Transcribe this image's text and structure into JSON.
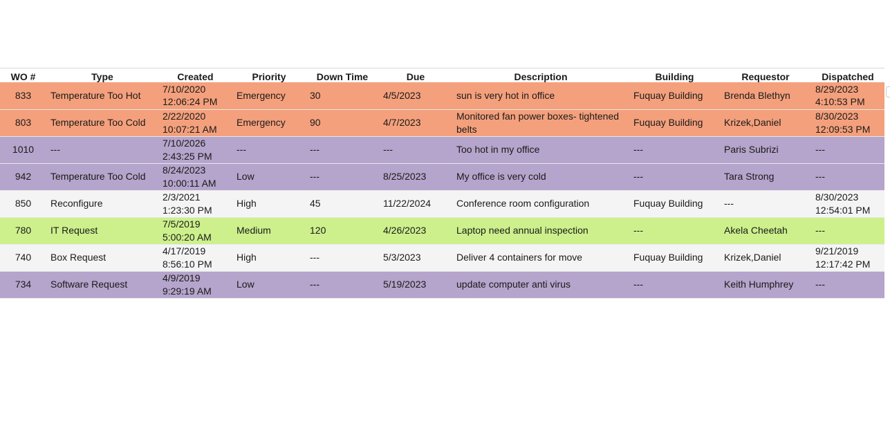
{
  "columns": [
    "WO #",
    "Type",
    "Created",
    "Priority",
    "Down Time",
    "Due",
    "Description",
    "Building",
    "Requestor",
    "Dispatched"
  ],
  "row_colors": {
    "emergency": "#f4a07c",
    "unassigned": "#b5a4cb",
    "high": "#f4f4f4",
    "medium": "#cdf08c"
  },
  "rows": [
    {
      "wo": "833",
      "type": "Temperature Too Hot",
      "created_date": "7/10/2020",
      "created_time": "12:06:24 PM",
      "priority": "Emergency",
      "downtime": "30",
      "due": "4/5/2023",
      "description": "sun is very hot in office",
      "building": "Fuquay Building",
      "requestor": "Brenda Blethyn",
      "dispatched_date": "8/29/2023",
      "dispatched_time": "4:10:53 PM",
      "color_key": "emergency"
    },
    {
      "wo": "803",
      "type": "Temperature Too Cold",
      "created_date": "2/22/2020",
      "created_time": "10:07:21 AM",
      "priority": "Emergency",
      "downtime": "90",
      "due": "4/7/2023",
      "description": "Monitored fan power boxes- tightened belts",
      "building": "Fuquay Building",
      "requestor": "Krizek,Daniel",
      "dispatched_date": "8/30/2023",
      "dispatched_time": "12:09:53 PM",
      "color_key": "emergency"
    },
    {
      "wo": "1010",
      "type": "---",
      "created_date": "7/10/2026",
      "created_time": "2:43:25 PM",
      "priority": "---",
      "downtime": "---",
      "due": "---",
      "description": "Too hot in my office",
      "building": "---",
      "requestor": "Paris Subrizi",
      "dispatched_date": "---",
      "dispatched_time": "",
      "color_key": "unassigned"
    },
    {
      "wo": "942",
      "type": "Temperature Too Cold",
      "created_date": "8/24/2023",
      "created_time": "10:00:11 AM",
      "priority": "Low",
      "downtime": "---",
      "due": "8/25/2023",
      "description": "My office is very cold",
      "building": "---",
      "requestor": "Tara Strong",
      "dispatched_date": "---",
      "dispatched_time": "",
      "color_key": "unassigned"
    },
    {
      "wo": "850",
      "type": "Reconfigure",
      "created_date": "2/3/2021",
      "created_time": "1:23:30 PM",
      "priority": "High",
      "downtime": "45",
      "due": "11/22/2024",
      "description": "Conference room configuration",
      "building": "Fuquay Building",
      "requestor": "---",
      "dispatched_date": "8/30/2023",
      "dispatched_time": "12:54:01 PM",
      "color_key": "high"
    },
    {
      "wo": "780",
      "type": "IT Request",
      "created_date": "7/5/2019",
      "created_time": "5:00:20 AM",
      "priority": "Medium",
      "downtime": "120",
      "due": "4/26/2023",
      "description": "Laptop need annual inspection",
      "building": "---",
      "requestor": "Akela Cheetah",
      "dispatched_date": "---",
      "dispatched_time": "",
      "color_key": "medium"
    },
    {
      "wo": "740",
      "type": "Box Request",
      "created_date": "4/17/2019",
      "created_time": "8:56:10 PM",
      "priority": "High",
      "downtime": "---",
      "due": "5/3/2023",
      "description": "Deliver 4 containers for move",
      "building": "Fuquay Building",
      "requestor": "Krizek,Daniel",
      "dispatched_date": "9/21/2019",
      "dispatched_time": "12:17:42 PM",
      "color_key": "high"
    },
    {
      "wo": "734",
      "type": "Software Request",
      "created_date": "4/9/2019",
      "created_time": "9:29:19 AM",
      "priority": "Low",
      "downtime": "---",
      "due": "5/19/2023",
      "description": "update computer anti virus",
      "building": "---",
      "requestor": "Keith Humphrey",
      "dispatched_date": "---",
      "dispatched_time": "",
      "color_key": "unassigned"
    }
  ]
}
